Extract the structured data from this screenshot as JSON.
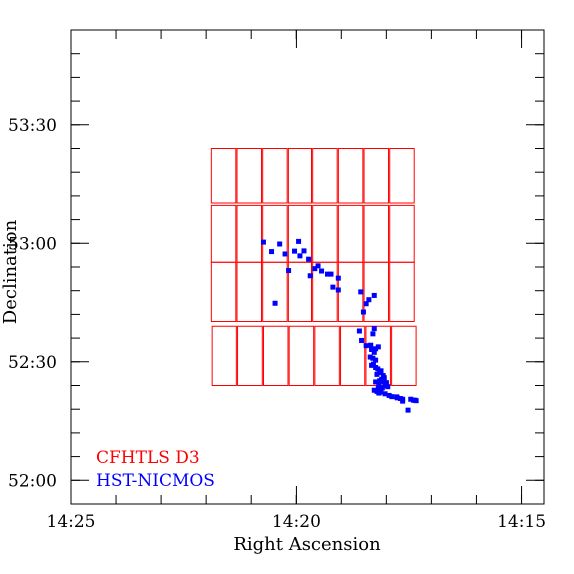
{
  "chart_data": {
    "type": "scatter",
    "title": "",
    "xlabel": "Right Ascension",
    "ylabel": "Declination",
    "xlim": [
      14.4167,
      14.2417
    ],
    "ylim": [
      51.9,
      53.9
    ],
    "x_reversed": true,
    "x_ticks": [
      {
        "value": 14.4167,
        "label": "14:25"
      },
      {
        "value": 14.3333,
        "label": "14:20"
      },
      {
        "value": 14.25,
        "label": "14:15"
      }
    ],
    "y_ticks": [
      {
        "value": 52.0,
        "label": "52:00"
      },
      {
        "value": 52.5,
        "label": "52:30"
      },
      {
        "value": 53.0,
        "label": "53:00"
      },
      {
        "value": 53.5,
        "label": "53:30"
      }
    ],
    "grid": false,
    "legend_position": "bottom-left",
    "colors": {
      "cfhtls": "#ff0000",
      "nicmos": "#0000ff",
      "axes": "#000000"
    },
    "series": [
      {
        "name": "CFHTLS D3",
        "kind": "rectangles",
        "rows": [
          {
            "dec_min": 53.17,
            "dec_max": 53.4,
            "ra_edges": [
              14.365,
              14.3555,
              14.346,
              14.3365,
              14.3275,
              14.318,
              14.3085,
              14.299,
              14.2895
            ]
          },
          {
            "dec_min": 52.92,
            "dec_max": 53.16,
            "ra_edges": [
              14.365,
              14.3555,
              14.346,
              14.3365,
              14.3275,
              14.318,
              14.3085,
              14.299,
              14.2895
            ]
          },
          {
            "dec_min": 52.67,
            "dec_max": 52.92,
            "ra_edges": [
              14.365,
              14.3555,
              14.346,
              14.3365,
              14.3275,
              14.318,
              14.3085,
              14.299,
              14.2895
            ]
          },
          {
            "dec_min": 52.4,
            "dec_max": 52.65,
            "ra_edges": [
              14.3647,
              14.3553,
              14.3457,
              14.3362,
              14.3267,
              14.3172,
              14.3078,
              14.2983,
              14.2888
            ]
          }
        ]
      },
      {
        "name": "HST-NICMOS",
        "kind": "points",
        "x": [
          14.3455,
          14.3425,
          14.3395,
          14.3375,
          14.3325,
          14.334,
          14.3305,
          14.3362,
          14.332,
          14.3288,
          14.3282,
          14.3253,
          14.324,
          14.3265,
          14.3218,
          14.3205,
          14.3412,
          14.3178,
          14.3198,
          14.3178,
          14.3095,
          14.3045,
          14.3065,
          14.3075,
          14.3085,
          14.31,
          14.3045,
          14.305,
          14.3092,
          14.3075,
          14.3058,
          14.3055,
          14.304,
          14.303,
          14.3045,
          14.306,
          14.305,
          14.304,
          14.3048,
          14.3055,
          14.304,
          14.3032,
          14.3025,
          14.302,
          14.3035,
          14.3012,
          14.3008,
          14.3018,
          14.3025,
          14.301,
          14.3,
          14.304,
          14.3028,
          14.3005,
          14.2995,
          14.3015,
          14.303,
          14.3045,
          14.3035,
          14.302,
          14.3028,
          14.3005,
          14.299,
          14.298,
          14.2962,
          14.296,
          14.2948,
          14.291,
          14.29,
          14.2895,
          14.289,
          14.294,
          14.294,
          14.292
        ],
        "y": [
          53.005,
          52.965,
          52.997,
          52.955,
          53.008,
          52.967,
          52.968,
          52.885,
          52.947,
          52.933,
          52.863,
          52.905,
          52.883,
          52.893,
          52.87,
          52.87,
          52.747,
          52.853,
          52.815,
          52.803,
          52.795,
          52.78,
          52.762,
          52.745,
          52.71,
          52.63,
          52.64,
          52.618,
          52.59,
          52.568,
          52.57,
          52.552,
          52.555,
          52.563,
          52.54,
          52.52,
          52.515,
          52.507,
          52.49,
          52.485,
          52.476,
          52.47,
          52.455,
          52.462,
          52.447,
          52.442,
          52.433,
          52.425,
          52.42,
          52.415,
          52.412,
          52.415,
          52.405,
          52.4,
          52.395,
          52.39,
          52.388,
          52.38,
          52.375,
          52.372,
          52.368,
          52.365,
          52.358,
          52.353,
          52.352,
          52.348,
          52.345,
          52.342,
          52.338,
          52.338,
          52.336,
          52.342,
          52.334,
          52.296
        ]
      }
    ]
  }
}
